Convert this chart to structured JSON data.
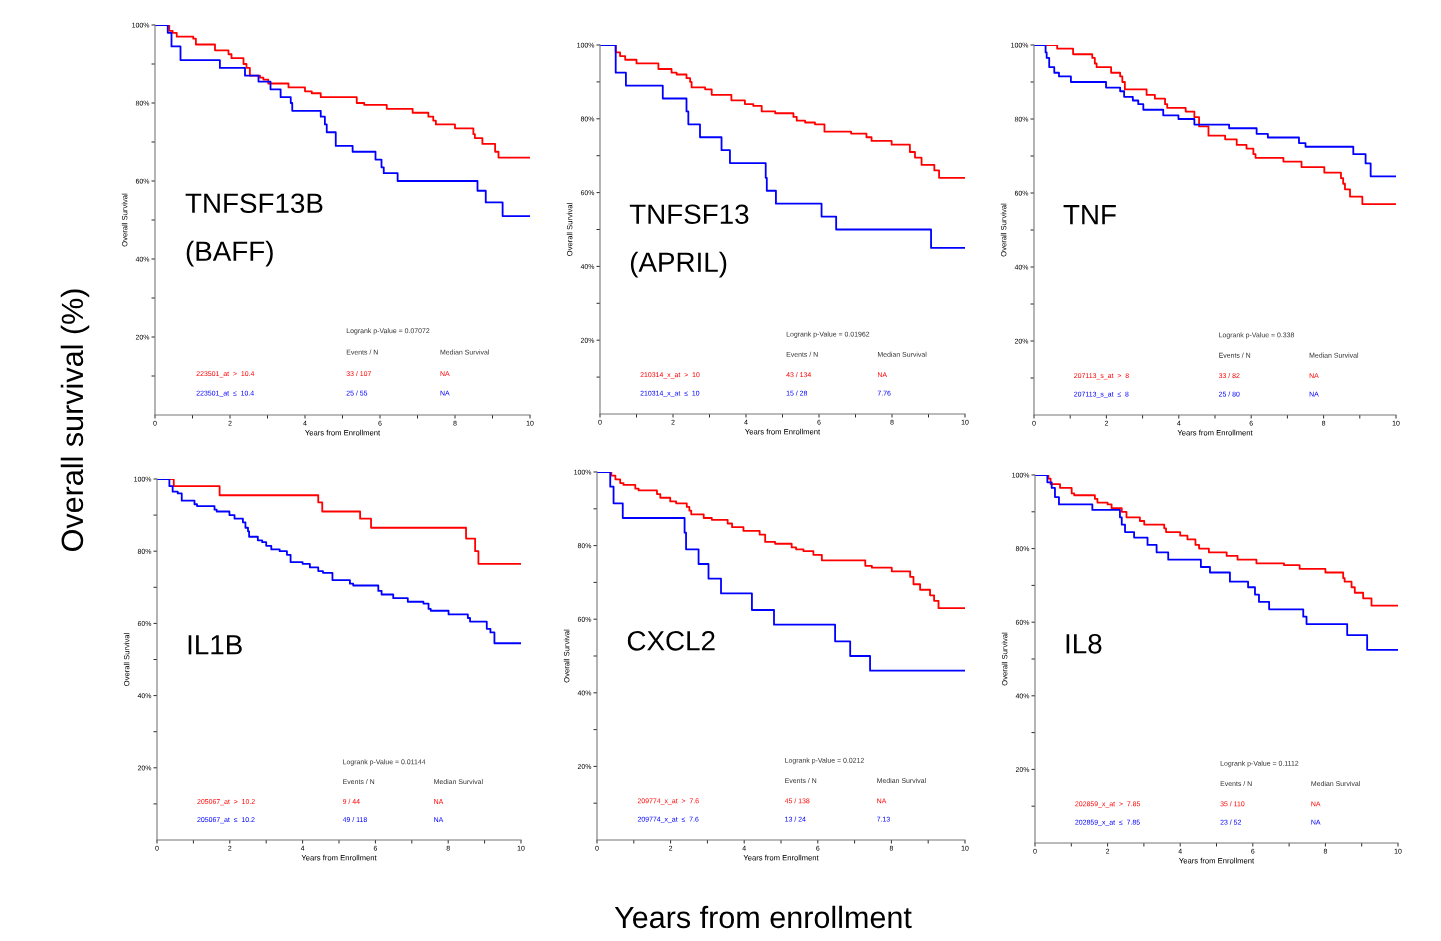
{
  "chart_data": [
    {
      "type": "step",
      "title": "TNFSF13B\n(BAFF)",
      "xlabel": "Years from Enrollment",
      "ylabel": "Overall Survival",
      "xlim": [
        0,
        10
      ],
      "ylim": [
        0,
        100
      ],
      "xticks": [
        0,
        {
          "value": 1,
          "label": null
        },
        2,
        {
          "value": 3,
          "label": null
        },
        4,
        {
          "value": 5,
          "label": null
        },
        6,
        {
          "value": 7,
          "label": null
        },
        8,
        {
          "value": 9,
          "label": null
        },
        10
      ],
      "yticks": [
        {
          "value": 10,
          "label": null
        },
        {
          "value": 20,
          "label": "20%"
        },
        {
          "value": 30,
          "label": null
        },
        {
          "value": 40,
          "label": "40%"
        },
        {
          "value": 50,
          "label": null
        },
        {
          "value": 60,
          "label": "60%"
        },
        {
          "value": 70,
          "label": null
        },
        {
          "value": 80,
          "label": "80%"
        },
        {
          "value": 90,
          "label": null
        },
        {
          "value": 100,
          "label": "100%"
        }
      ],
      "annotations": [
        "Logrank p-Value = 0.07072",
        "Events / N",
        "Median Survival",
        "33 / 107",
        "NA",
        "25 / 55",
        "NA"
      ],
      "series": [
        {
          "name": "223501_at  >  10.4",
          "color": "#ff0000",
          "x": [
            0,
            0.38,
            0.47,
            0.58,
            1.02,
            1.09,
            1.6,
            1.96,
            2.04,
            2.36,
            2.44,
            2.53,
            2.8,
            2.89,
            3.02,
            3.56,
            4.0,
            4.18,
            4.42,
            5.38,
            5.58,
            6.18,
            6.87,
            7.29,
            7.42,
            7.49,
            8.0,
            8.49,
            8.53,
            8.73,
            9.07,
            9.16,
            10
          ],
          "values": [
            100,
            98.5,
            98,
            97,
            96.5,
            95,
            93.5,
            92.5,
            91.5,
            90,
            89,
            87,
            86.5,
            86,
            85,
            84,
            83,
            82.5,
            81.5,
            80,
            79.5,
            78.5,
            77.5,
            76.5,
            75.5,
            74.5,
            73.5,
            72,
            71,
            69.5,
            67.5,
            66,
            66
          ]
        },
        {
          "name": "223501_at  ≤  10.4",
          "color": "#0000ff",
          "x": [
            0,
            0.34,
            0.44,
            0.68,
            1.73,
            2.4,
            2.76,
            3.08,
            3.35,
            3.62,
            3.66,
            4.42,
            4.53,
            4.58,
            4.82,
            5.27,
            5.88,
            6.04,
            6.1,
            6.47,
            8.6,
            8.82,
            9.27,
            10
          ],
          "values": [
            100,
            98,
            94.5,
            91,
            89,
            87,
            85.5,
            83.5,
            81.5,
            80,
            78,
            76.5,
            74.5,
            72.5,
            69,
            67.5,
            65.5,
            63.5,
            62,
            60,
            57.5,
            54.5,
            51,
            51
          ]
        }
      ]
    },
    {
      "type": "step",
      "title": "TNFSF13\n(APRIL)",
      "xlabel": "Years from Enrollment",
      "ylabel": "Overall Survival",
      "xlim": [
        0,
        10
      ],
      "ylim": [
        0,
        100
      ],
      "xticks": [
        0,
        {
          "value": 1,
          "label": null
        },
        2,
        {
          "value": 3,
          "label": null
        },
        4,
        {
          "value": 5,
          "label": null
        },
        6,
        {
          "value": 7,
          "label": null
        },
        8,
        {
          "value": 9,
          "label": null
        },
        10
      ],
      "yticks": [
        {
          "value": 10,
          "label": null
        },
        {
          "value": 20,
          "label": "20%"
        },
        {
          "value": 30,
          "label": null
        },
        {
          "value": 40,
          "label": "40%"
        },
        {
          "value": 50,
          "label": null
        },
        {
          "value": 60,
          "label": "60%"
        },
        {
          "value": 70,
          "label": null
        },
        {
          "value": 80,
          "label": "80%"
        },
        {
          "value": 90,
          "label": null
        },
        {
          "value": 100,
          "label": "100%"
        }
      ],
      "annotations": [
        "Logrank p-Value = 0.01962",
        "Events / N",
        "Median Survival",
        "43 / 134",
        "NA",
        "15 / 28",
        "7.76"
      ],
      "series": [
        {
          "name": "210314_x_at  >  10",
          "color": "#ff0000",
          "x": [
            0,
            0.43,
            0.55,
            0.69,
            1.0,
            1.6,
            1.96,
            2.1,
            2.37,
            2.47,
            2.51,
            2.88,
            3.06,
            3.6,
            3.97,
            4.2,
            4.43,
            4.8,
            5.3,
            5.39,
            5.62,
            5.89,
            6.15,
            6.88,
            7.3,
            7.44,
            7.99,
            8.49,
            8.63,
            8.81,
            9.16,
            9.29,
            10
          ],
          "values": [
            100,
            98,
            97,
            96,
            95,
            93.5,
            92.5,
            92,
            91,
            90,
            88.5,
            88,
            86.5,
            85,
            84,
            83.5,
            82,
            81.5,
            80.5,
            79.5,
            79,
            78.5,
            76.5,
            76,
            75,
            74,
            73,
            71,
            69.5,
            67.5,
            66,
            64,
            64
          ]
        },
        {
          "name": "210314_x_at  ≤  10",
          "color": "#0000ff",
          "x": [
            0,
            0.43,
            0.71,
            1.72,
            2.37,
            2.42,
            2.74,
            3.33,
            3.56,
            4.54,
            4.57,
            4.82,
            6.07,
            6.47,
            9.07,
            10
          ],
          "values": [
            100,
            92.5,
            89,
            85.5,
            82,
            78.5,
            75,
            71.5,
            68,
            64,
            60.5,
            57,
            53.5,
            50,
            45,
            45
          ]
        }
      ]
    },
    {
      "type": "step",
      "title": "TNF",
      "xlabel": "Years from Enrollment",
      "ylabel": "Overall Survival",
      "xlim": [
        0,
        10
      ],
      "ylim": [
        0,
        100
      ],
      "xticks": [
        0,
        {
          "value": 1,
          "label": null
        },
        2,
        {
          "value": 3,
          "label": null
        },
        4,
        {
          "value": 5,
          "label": null
        },
        6,
        {
          "value": 7,
          "label": null
        },
        8,
        {
          "value": 9,
          "label": null
        },
        10
      ],
      "yticks": [
        {
          "value": 10,
          "label": null
        },
        {
          "value": 20,
          "label": "20%"
        },
        {
          "value": 30,
          "label": null
        },
        {
          "value": 40,
          "label": "40%"
        },
        {
          "value": 50,
          "label": null
        },
        {
          "value": 60,
          "label": "60%"
        },
        {
          "value": 70,
          "label": null
        },
        {
          "value": 80,
          "label": "80%"
        },
        {
          "value": 90,
          "label": null
        },
        {
          "value": 100,
          "label": "100%"
        }
      ],
      "annotations": [
        "Logrank p-Value = 0.338",
        "Events / N",
        "Median Survival",
        "33 / 82",
        "NA",
        "25 / 80",
        "NA"
      ],
      "series": [
        {
          "name": "207113_s_at  >  8",
          "color": "#ff0000",
          "x": [
            0,
            0.64,
            1.08,
            1.61,
            1.68,
            1.73,
            2.13,
            2.38,
            2.44,
            2.51,
            3.11,
            3.34,
            3.62,
            3.68,
            4.19,
            4.43,
            4.56,
            4.82,
            5.28,
            5.6,
            5.87,
            6.06,
            6.12,
            6.89,
            7.39,
            8.02,
            8.48,
            8.54,
            8.59,
            8.73,
            9.07,
            10
          ],
          "values": [
            100,
            99,
            97.5,
            96.5,
            95,
            94,
            92.5,
            91.5,
            90,
            88,
            86.5,
            85.5,
            84,
            83,
            82,
            80.5,
            78,
            75.5,
            74.5,
            73,
            72,
            70.5,
            69.5,
            68.5,
            67,
            65.5,
            64,
            62.5,
            61,
            59,
            57,
            57
          ]
        },
        {
          "name": "207113_s_at  ≤  8",
          "color": "#0000ff",
          "x": [
            0,
            0.32,
            0.35,
            0.42,
            0.56,
            0.69,
            1.02,
            1.99,
            2.38,
            2.49,
            2.73,
            2.88,
            3.02,
            3.57,
            3.99,
            4.43,
            5.39,
            6.15,
            6.46,
            7.32,
            7.5,
            8.82,
            9.16,
            9.3,
            10
          ],
          "values": [
            100,
            98,
            96.5,
            94,
            92.5,
            91.5,
            90,
            88.5,
            87.5,
            86,
            85,
            84,
            82.5,
            81,
            80,
            78.5,
            77.5,
            76,
            75,
            73.5,
            72.5,
            70.5,
            68,
            64.5,
            64.5
          ]
        }
      ]
    },
    {
      "type": "step",
      "title": "IL1B",
      "xlabel": "Years from Enrollment",
      "ylabel": "Overall Survival",
      "xlim": [
        0,
        10
      ],
      "ylim": [
        0,
        100
      ],
      "xticks": [
        0,
        {
          "value": 1,
          "label": null
        },
        2,
        {
          "value": 3,
          "label": null
        },
        4,
        {
          "value": 5,
          "label": null
        },
        6,
        {
          "value": 7,
          "label": null
        },
        8,
        {
          "value": 9,
          "label": null
        },
        10
      ],
      "yticks": [
        {
          "value": 10,
          "label": null
        },
        {
          "value": 20,
          "label": "20%"
        },
        {
          "value": 30,
          "label": null
        },
        {
          "value": 40,
          "label": "40%"
        },
        {
          "value": 50,
          "label": null
        },
        {
          "value": 60,
          "label": "60%"
        },
        {
          "value": 70,
          "label": null
        },
        {
          "value": 80,
          "label": "80%"
        },
        {
          "value": 90,
          "label": null
        },
        {
          "value": 100,
          "label": "100%"
        }
      ],
      "annotations": [
        "Logrank p-Value = 0.01144",
        "Events / N",
        "Median Survival",
        "9 / 44",
        "NA",
        "49 / 118",
        "NA"
      ],
      "series": [
        {
          "name": "205067_at  >  10.2",
          "color": "#ff0000",
          "x": [
            0,
            0.46,
            1.72,
            4.43,
            4.54,
            5.58,
            5.88,
            8.49,
            8.74,
            8.83,
            10
          ],
          "values": [
            100,
            98,
            95.5,
            93.5,
            91,
            89,
            86.5,
            83.5,
            80,
            76.5,
            76.5
          ]
        },
        {
          "name": "205067_at  ≤  10.2",
          "color": "#0000ff",
          "x": [
            0,
            0.34,
            0.43,
            0.57,
            0.68,
            1.03,
            1.1,
            1.58,
            1.64,
            1.99,
            2.13,
            2.36,
            2.43,
            2.5,
            2.53,
            2.77,
            2.89,
            3.0,
            3.14,
            3.37,
            3.57,
            3.67,
            4.0,
            4.2,
            4.43,
            4.56,
            4.82,
            5.3,
            5.39,
            6.08,
            6.17,
            6.49,
            6.89,
            7.32,
            7.46,
            7.52,
            8.01,
            8.54,
            8.6,
            9.06,
            9.16,
            9.27,
            10
          ],
          "values": [
            100,
            98,
            96.5,
            96,
            94,
            93,
            92.5,
            91.5,
            91,
            90,
            89,
            88,
            86.5,
            85.5,
            84,
            83,
            82.5,
            81.5,
            80.5,
            80,
            79,
            77,
            76.5,
            75.5,
            74.5,
            74,
            72,
            71,
            70.5,
            69,
            68,
            67,
            66,
            65.5,
            64,
            63.5,
            62.5,
            61.5,
            60.5,
            58.5,
            57.5,
            54.5,
            54.5
          ]
        }
      ]
    },
    {
      "type": "step",
      "title": "CXCL2",
      "xlabel": "Years from Enrollment",
      "ylabel": "Overall Survival",
      "xlim": [
        0,
        10
      ],
      "ylim": [
        0,
        100
      ],
      "xticks": [
        0,
        {
          "value": 1,
          "label": null
        },
        2,
        {
          "value": 3,
          "label": null
        },
        4,
        {
          "value": 5,
          "label": null
        },
        6,
        {
          "value": 7,
          "label": null
        },
        8,
        {
          "value": 9,
          "label": null
        },
        10
      ],
      "yticks": [
        {
          "value": 10,
          "label": null
        },
        {
          "value": 20,
          "label": "20%"
        },
        {
          "value": 30,
          "label": null
        },
        {
          "value": 40,
          "label": "40%"
        },
        {
          "value": 50,
          "label": null
        },
        {
          "value": 60,
          "label": "60%"
        },
        {
          "value": 70,
          "label": null
        },
        {
          "value": 80,
          "label": "80%"
        },
        {
          "value": 90,
          "label": null
        },
        {
          "value": 100,
          "label": "100%"
        }
      ],
      "annotations": [
        "Logrank p-Value = 0.0212",
        "Events / N",
        "Median Survival",
        "45 / 138",
        "NA",
        "13 / 24",
        "7.13"
      ],
      "series": [
        {
          "name": "209774_x_at  >  7.6",
          "color": "#ff0000",
          "x": [
            0,
            0.39,
            0.5,
            0.63,
            0.72,
            1.04,
            1.13,
            1.63,
            1.72,
            1.99,
            2.15,
            2.44,
            2.51,
            2.56,
            2.9,
            3.12,
            3.55,
            3.67,
            3.98,
            4.42,
            4.57,
            4.84,
            5.29,
            5.41,
            5.61,
            5.88,
            6.11,
            7.29,
            7.47,
            8.01,
            8.51,
            8.6,
            8.78,
            9.05,
            9.16,
            9.28,
            10
          ],
          "values": [
            100,
            99,
            98,
            97,
            96.5,
            95.5,
            95,
            94,
            93,
            92,
            91.5,
            90.5,
            89.5,
            88.5,
            87.5,
            87,
            86,
            85,
            84,
            83,
            81,
            80.5,
            79.5,
            79,
            78.5,
            77.5,
            76,
            74.5,
            74,
            73,
            71.5,
            69.5,
            68,
            66.5,
            65,
            63,
            63
          ]
        },
        {
          "name": "209774_x_at  ≤  7.6",
          "color": "#0000ff",
          "x": [
            0,
            0.36,
            0.45,
            0.7,
            2.38,
            2.42,
            2.76,
            3.03,
            3.37,
            4.21,
            4.81,
            6.47,
            6.88,
            7.42,
            10
          ],
          "values": [
            100,
            96,
            91.5,
            87.5,
            83.5,
            79,
            75,
            71,
            67,
            62.5,
            58.5,
            54,
            50,
            46,
            46
          ]
        }
      ]
    },
    {
      "type": "step",
      "title": "IL8",
      "xlabel": "Years from Enrollment",
      "ylabel": "Overall Survival",
      "xlim": [
        0,
        10
      ],
      "ylim": [
        0,
        100
      ],
      "xticks": [
        0,
        {
          "value": 1,
          "label": null
        },
        2,
        {
          "value": 3,
          "label": null
        },
        4,
        {
          "value": 5,
          "label": null
        },
        6,
        {
          "value": 7,
          "label": null
        },
        8,
        {
          "value": 9,
          "label": null
        },
        10
      ],
      "yticks": [
        {
          "value": 10,
          "label": null
        },
        {
          "value": 20,
          "label": "20%"
        },
        {
          "value": 30,
          "label": null
        },
        {
          "value": 40,
          "label": "40%"
        },
        {
          "value": 50,
          "label": null
        },
        {
          "value": 60,
          "label": "60%"
        },
        {
          "value": 70,
          "label": null
        },
        {
          "value": 80,
          "label": "80%"
        },
        {
          "value": 90,
          "label": null
        },
        {
          "value": 100,
          "label": "100%"
        }
      ],
      "annotations": [
        "Logrank p-Value = 0.1112",
        "Events / N",
        "Median Survival",
        "35 / 110",
        "NA",
        "23 / 52",
        "NA"
      ],
      "series": [
        {
          "name": "202859_x_at  >  7.85",
          "color": "#ff0000",
          "x": [
            0,
            0.37,
            0.43,
            0.69,
            1.01,
            1.08,
            1.65,
            1.72,
            2.0,
            2.11,
            2.39,
            2.52,
            2.89,
            3.01,
            3.56,
            3.61,
            4.0,
            4.2,
            4.42,
            4.52,
            4.79,
            5.28,
            5.58,
            6.1,
            6.86,
            7.29,
            8.0,
            8.49,
            8.53,
            8.72,
            8.81,
            9.04,
            9.27,
            10
          ],
          "values": [
            100,
            99,
            97.5,
            96.5,
            95,
            94.5,
            93.5,
            92.5,
            92,
            91,
            90,
            88.5,
            87.5,
            86.5,
            85.5,
            84.5,
            83.5,
            82.5,
            81,
            80,
            79,
            78,
            77,
            76,
            75.5,
            74.5,
            73.5,
            72,
            71,
            69.5,
            68,
            66.5,
            64.5,
            64.5
          ]
        },
        {
          "name": "202859_x_at  ≤  7.85",
          "color": "#0000ff",
          "x": [
            0,
            0.34,
            0.46,
            0.55,
            0.66,
            1.58,
            2.34,
            2.39,
            2.48,
            2.73,
            3.1,
            3.35,
            3.67,
            4.57,
            4.82,
            5.37,
            5.87,
            6.06,
            6.17,
            6.45,
            7.39,
            7.48,
            8.6,
            9.15,
            10
          ],
          "values": [
            100,
            98,
            96.5,
            94,
            92,
            90.5,
            88.5,
            86.5,
            84.5,
            83,
            81,
            79,
            77,
            75,
            73.5,
            71,
            69.5,
            67.5,
            65.5,
            63.5,
            61.5,
            59.5,
            56.5,
            52.5,
            52.5
          ]
        }
      ]
    },
    {
      "type": "other",
      "ylabel": "Overall survival (%)",
      "xlabel": "Years from enrollment"
    }
  ]
}
